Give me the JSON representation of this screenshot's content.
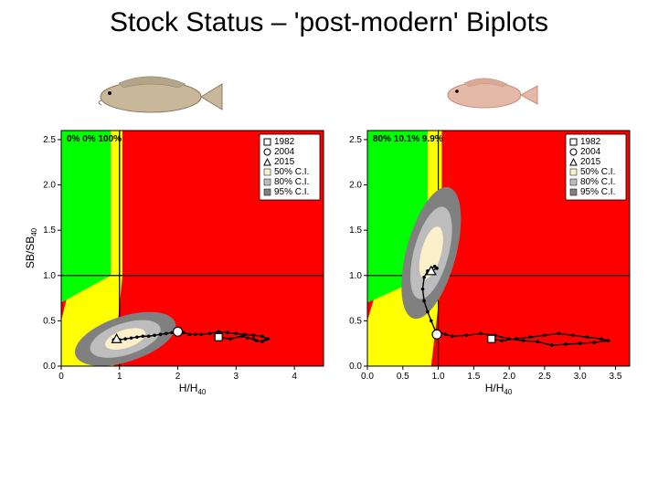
{
  "title": "Stock Status – 'post-modern' Biplots",
  "legend": {
    "items": [
      {
        "label": "1982",
        "marker": "square-open",
        "color": "#000000"
      },
      {
        "label": "2004",
        "marker": "circle-open",
        "color": "#000000"
      },
      {
        "label": "2015",
        "marker": "triangle-open",
        "color": "#000000"
      },
      {
        "label": "50% C.I.",
        "marker": "swatch",
        "color": "#fbf0c9"
      },
      {
        "label": "80% C.I.",
        "marker": "swatch",
        "color": "#bdbdbd"
      },
      {
        "label": "95% C.I.",
        "marker": "swatch",
        "color": "#808080"
      }
    ]
  },
  "colors": {
    "bg_red": "#ff0000",
    "bg_green": "#00ff00",
    "bg_yellow": "#ffff00",
    "grid_black": "#000000",
    "ci95": "#808080",
    "ci80": "#bdbdbd",
    "ci50": "#fbf0c9",
    "traj_line": "#000000",
    "white_fill": "#ffffff"
  },
  "left": {
    "xlabel": "H/H",
    "xlabel_sub": "40",
    "ylabel": "SB/SB",
    "ylabel_sub": "40",
    "xlim": [
      0,
      4.5
    ],
    "ylim": [
      0.0,
      2.6
    ],
    "xticks": [
      0,
      1,
      2,
      3,
      4
    ],
    "yticks": [
      0.0,
      0.5,
      1.0,
      1.5,
      2.0,
      2.5
    ],
    "ci_center": [
      1.1,
      0.3
    ],
    "ci_scale": [
      0.9,
      0.25,
      -18
    ],
    "trajectory": [
      [
        2.7,
        0.32
      ],
      [
        2.9,
        0.3
      ],
      [
        3.1,
        0.33
      ],
      [
        3.2,
        0.31
      ],
      [
        3.3,
        0.3
      ],
      [
        3.35,
        0.28
      ],
      [
        3.45,
        0.27
      ],
      [
        3.5,
        0.29
      ],
      [
        3.55,
        0.3
      ],
      [
        3.45,
        0.33
      ],
      [
        3.3,
        0.34
      ],
      [
        3.15,
        0.35
      ],
      [
        3.0,
        0.36
      ],
      [
        2.85,
        0.37
      ],
      [
        2.7,
        0.38
      ],
      [
        2.55,
        0.36
      ],
      [
        2.4,
        0.35
      ],
      [
        2.3,
        0.35
      ],
      [
        2.2,
        0.35
      ],
      [
        2.1,
        0.37
      ],
      [
        2.0,
        0.38
      ],
      [
        1.9,
        0.37
      ],
      [
        1.8,
        0.36
      ],
      [
        1.7,
        0.35
      ],
      [
        1.6,
        0.34
      ],
      [
        1.5,
        0.33
      ],
      [
        1.4,
        0.33
      ],
      [
        1.3,
        0.32
      ],
      [
        1.2,
        0.31
      ],
      [
        1.1,
        0.3
      ],
      [
        1.0,
        0.29
      ],
      [
        0.95,
        0.28
      ],
      [
        0.9,
        0.29
      ],
      [
        0.95,
        0.3
      ]
    ],
    "marker_1982": [
      2.7,
      0.32
    ],
    "marker_2004": [
      2.0,
      0.38
    ],
    "marker_2015": [
      0.95,
      0.3
    ],
    "zone_labels": "0%  0%  100%"
  },
  "right": {
    "xlabel": "H/H",
    "xlabel_sub": "40",
    "ylabel": "",
    "xlim": [
      0.0,
      3.7
    ],
    "ylim": [
      0.0,
      2.6
    ],
    "xticks": [
      0.0,
      0.5,
      1.0,
      1.5,
      2.0,
      2.5,
      3.0,
      3.5
    ],
    "yticks": [
      0.0,
      0.5,
      1.0,
      1.5,
      2.0,
      2.5
    ],
    "ci_center": [
      0.9,
      1.25
    ],
    "ci_scale": [
      0.35,
      0.75,
      15
    ],
    "trajectory": [
      [
        1.75,
        0.3
      ],
      [
        1.9,
        0.28
      ],
      [
        2.1,
        0.3
      ],
      [
        2.3,
        0.32
      ],
      [
        2.5,
        0.34
      ],
      [
        2.7,
        0.36
      ],
      [
        2.9,
        0.34
      ],
      [
        3.1,
        0.32
      ],
      [
        3.3,
        0.3
      ],
      [
        3.4,
        0.28
      ],
      [
        3.2,
        0.26
      ],
      [
        3.0,
        0.25
      ],
      [
        2.8,
        0.24
      ],
      [
        2.6,
        0.23
      ],
      [
        2.4,
        0.27
      ],
      [
        2.2,
        0.28
      ],
      [
        2.0,
        0.3
      ],
      [
        1.8,
        0.34
      ],
      [
        1.6,
        0.36
      ],
      [
        1.4,
        0.34
      ],
      [
        1.2,
        0.33
      ],
      [
        1.1,
        0.35
      ],
      [
        1.0,
        0.38
      ],
      [
        0.98,
        0.35
      ],
      [
        0.9,
        0.5
      ],
      [
        0.85,
        0.6
      ],
      [
        0.8,
        0.72
      ],
      [
        0.78,
        0.85
      ],
      [
        0.8,
        0.98
      ],
      [
        0.85,
        1.05
      ],
      [
        0.9,
        1.08
      ],
      [
        0.95,
        1.1
      ],
      [
        0.98,
        1.08
      ],
      [
        0.9,
        1.05
      ]
    ],
    "marker_1982": [
      1.75,
      0.3
    ],
    "marker_2004": [
      0.98,
      0.35
    ],
    "marker_2015": [
      0.9,
      1.05
    ],
    "zone_labels": "80%  10.1%  9.9%"
  }
}
